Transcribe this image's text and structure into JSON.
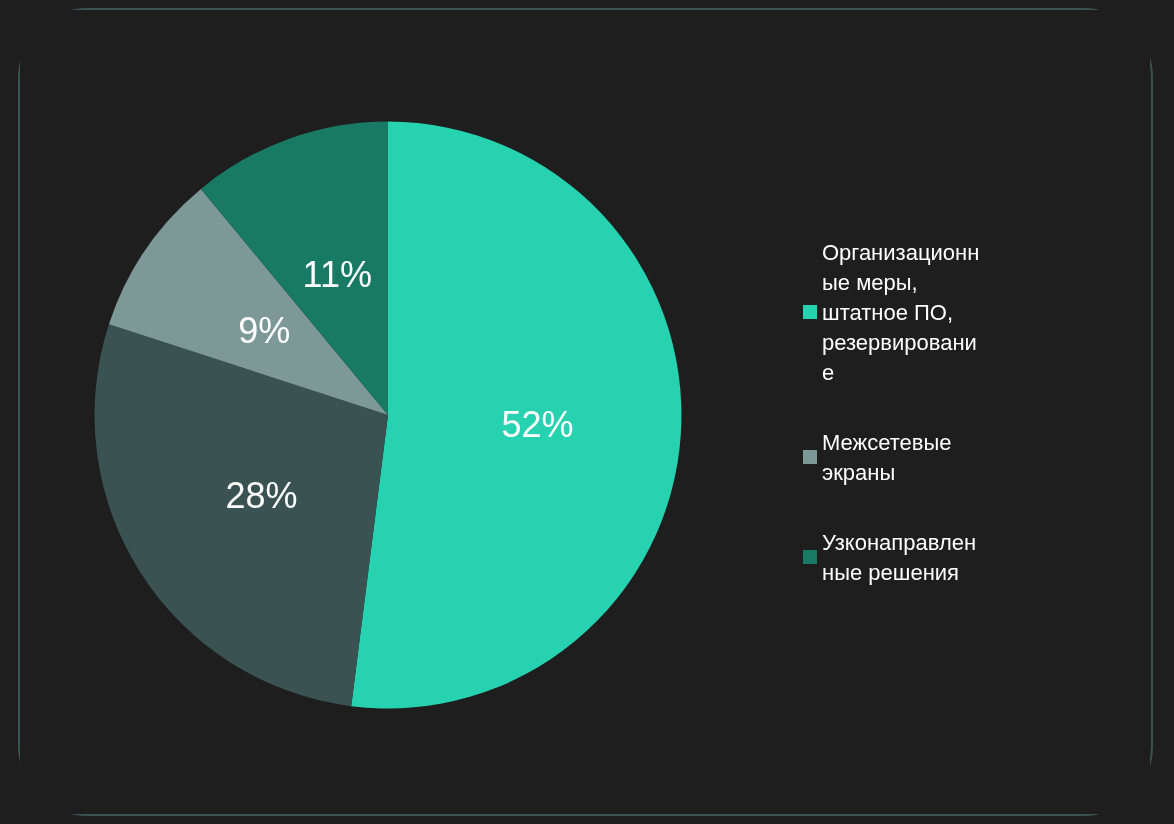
{
  "chart_data": {
    "type": "pie",
    "categories": [
      "Организационные меры, штатное ПО, резервирование",
      null,
      "Межсетевые экраны",
      "Узконаправленные решения"
    ],
    "values": [
      52,
      28,
      9,
      11
    ],
    "colors": [
      "#26d2b0",
      "#3a5352",
      "#7d9997",
      "#187a64"
    ],
    "value_labels": [
      "52%",
      "28%",
      "9%",
      "11%"
    ],
    "legend": "right"
  }
}
